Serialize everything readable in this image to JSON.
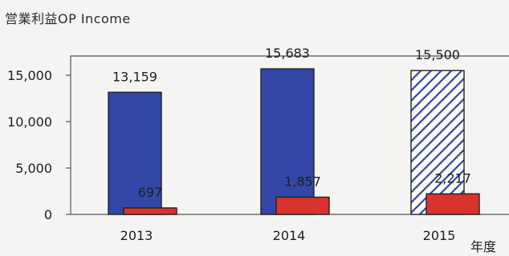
{
  "chart_data": {
    "type": "bar",
    "title": "営業利益OP Income",
    "xlabel": "年度",
    "ylabel": "",
    "categories": [
      "2013",
      "2014",
      "2015"
    ],
    "ylim": [
      0,
      15000
    ],
    "yticks": [
      0,
      5000,
      10000,
      15000
    ],
    "ytick_labels": [
      "0",
      "5,000",
      "10,000",
      "15,000"
    ],
    "grid": false,
    "legend": "none",
    "series": [
      {
        "values": [
          13159,
          15683,
          15500
        ],
        "labels": [
          "13,159",
          "15,683",
          "15,500"
        ],
        "color": "#3347a8",
        "hatched": [
          false,
          false,
          true
        ]
      },
      {
        "values": [
          697,
          1857,
          2217
        ],
        "labels": [
          "697",
          "1,857",
          "2,217"
        ],
        "color": "#d9332e",
        "hatched": [
          false,
          false,
          false
        ]
      }
    ]
  }
}
